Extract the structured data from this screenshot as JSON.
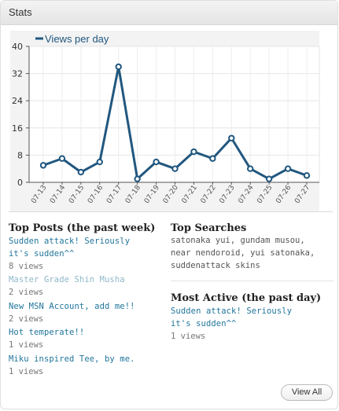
{
  "widget": {
    "title": "Stats"
  },
  "chart_data": {
    "type": "line",
    "legend": "Views per day",
    "legend_position": "top-left",
    "series_color": "#21577f",
    "x": [
      "07-13",
      "07-14",
      "07-15",
      "07-16",
      "07-17",
      "07-18",
      "07-19",
      "07-20",
      "07-21",
      "07-22",
      "07-23",
      "07-24",
      "07-25",
      "07-26",
      "07-27"
    ],
    "values": [
      5,
      7,
      3,
      6,
      34,
      1,
      6,
      4,
      9,
      7,
      13,
      4,
      1,
      4,
      2
    ],
    "yticks": [
      0,
      8,
      16,
      24,
      32,
      40
    ],
    "ylim": [
      0,
      40
    ],
    "grid": true
  },
  "top_posts": {
    "title": "Top Posts (the past week)",
    "items": [
      {
        "lines": [
          "Sudden attack! Seriously",
          "it's sudden^^"
        ],
        "views": "8 views",
        "faded": false
      },
      {
        "lines": [
          "Master Grade Shin Musha"
        ],
        "views": "2 views",
        "faded": true
      },
      {
        "lines": [
          "New MSN Account, add me!!"
        ],
        "views": "2 views",
        "faded": false
      },
      {
        "lines": [
          "Hot temperate!!"
        ],
        "views": "1 views",
        "faded": false
      },
      {
        "lines": [
          "Miku inspired Tee, by me."
        ],
        "views": "1 views",
        "faded": false
      }
    ]
  },
  "top_searches": {
    "title": "Top Searches",
    "lines": [
      "satonaka yui, gundam musou,",
      "near nendoroid, yui satonaka,",
      "suddenattack skins"
    ]
  },
  "most_active": {
    "title": "Most Active (the past day)",
    "lines": [
      "Sudden attack! Seriously",
      "it's sudden^^"
    ],
    "views": "1 views"
  },
  "view_all_label": "View All",
  "colors": {
    "link": "#21759b",
    "link_faded": "#8fb8c9",
    "line": "#21577f"
  }
}
